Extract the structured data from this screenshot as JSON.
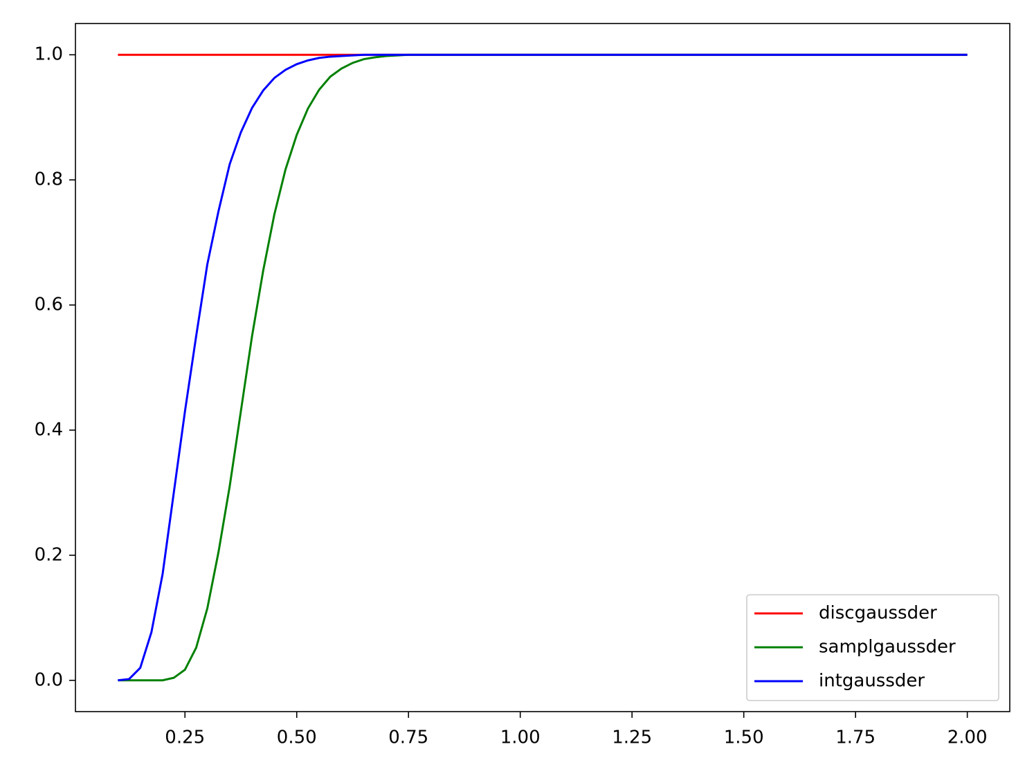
{
  "chart_data": {
    "type": "line",
    "x": [
      0.1,
      0.125,
      0.15,
      0.175,
      0.2,
      0.225,
      0.25,
      0.275,
      0.3,
      0.325,
      0.35,
      0.375,
      0.4,
      0.425,
      0.45,
      0.475,
      0.5,
      0.525,
      0.55,
      0.575,
      0.6,
      0.625,
      0.65,
      0.675,
      0.7,
      0.725,
      0.75,
      0.775,
      0.8,
      0.825,
      0.85,
      0.875,
      0.9,
      0.925,
      0.95,
      0.975,
      1.0,
      1.025,
      1.05,
      1.075,
      1.1,
      1.125,
      1.15,
      1.175,
      1.2,
      1.225,
      1.25,
      1.275,
      1.3,
      1.325,
      1.35,
      1.375,
      1.4,
      1.425,
      1.45,
      1.475,
      1.5,
      1.525,
      1.55,
      1.575,
      1.6,
      1.625,
      1.65,
      1.675,
      1.7,
      1.725,
      1.75,
      1.775,
      1.8,
      1.825,
      1.85,
      1.875,
      1.9,
      1.925,
      1.95,
      1.975,
      2.0
    ],
    "series": [
      {
        "name": "discgaussder",
        "color": "#ff0000",
        "values": [
          1,
          1,
          1,
          1,
          1,
          1,
          1,
          1,
          1,
          1,
          1,
          1,
          1,
          1,
          1,
          1,
          1,
          1,
          1,
          1,
          1,
          1,
          1,
          1,
          1,
          1,
          1,
          1,
          1,
          1,
          1,
          1,
          1,
          1,
          1,
          1,
          1,
          1,
          1,
          1,
          1,
          1,
          1,
          1,
          1,
          1,
          1,
          1,
          1,
          1,
          1,
          1,
          1,
          1,
          1,
          1,
          1,
          1,
          1,
          1,
          1,
          1,
          1,
          1,
          1,
          1,
          1,
          1,
          1,
          1,
          1,
          1,
          1,
          1,
          1,
          1,
          1
        ]
      },
      {
        "name": "samplgaussder",
        "color": "#008000",
        "values": [
          0,
          0,
          0,
          0,
          0,
          0.004,
          0.017,
          0.052,
          0.115,
          0.205,
          0.31,
          0.43,
          0.55,
          0.655,
          0.745,
          0.817,
          0.872,
          0.914,
          0.944,
          0.965,
          0.978,
          0.987,
          0.993,
          0.996,
          0.998,
          0.999,
          1,
          1,
          1,
          1,
          1,
          1,
          1,
          1,
          1,
          1,
          1,
          1,
          1,
          1,
          1,
          1,
          1,
          1,
          1,
          1,
          1,
          1,
          1,
          1,
          1,
          1,
          1,
          1,
          1,
          1,
          1,
          1,
          1,
          1,
          1,
          1,
          1,
          1,
          1,
          1,
          1,
          1,
          1,
          1,
          1,
          1,
          1,
          1,
          1,
          1,
          1
        ]
      },
      {
        "name": "intgaussder",
        "color": "#0000ff",
        "values": [
          0,
          0.002,
          0.02,
          0.077,
          0.17,
          0.3,
          0.43,
          0.55,
          0.665,
          0.75,
          0.825,
          0.876,
          0.915,
          0.943,
          0.963,
          0.976,
          0.985,
          0.991,
          0.995,
          0.997,
          0.998,
          0.999,
          1,
          1,
          1,
          1,
          1,
          1,
          1,
          1,
          1,
          1,
          1,
          1,
          1,
          1,
          1,
          1,
          1,
          1,
          1,
          1,
          1,
          1,
          1,
          1,
          1,
          1,
          1,
          1,
          1,
          1,
          1,
          1,
          1,
          1,
          1,
          1,
          1,
          1,
          1,
          1,
          1,
          1,
          1,
          1,
          1,
          1,
          1,
          1,
          1,
          1,
          1,
          1,
          1,
          1,
          1
        ]
      }
    ],
    "xlim": [
      0.005,
      2.095
    ],
    "ylim": [
      -0.05,
      1.05
    ],
    "xticks": [
      0.25,
      {
        "value": 0.5,
        "label": "0.50"
      },
      0.75,
      {
        "value": 1,
        "label": "1.00"
      },
      1.25,
      {
        "value": 1.5,
        "label": "1.50"
      },
      1.75,
      {
        "value": 2,
        "label": "2.00"
      }
    ],
    "yticks": [
      {
        "value": 0,
        "label": "0.0"
      },
      0.2,
      0.4,
      0.6,
      0.8,
      {
        "value": 1,
        "label": "1.0"
      }
    ],
    "legend": "lower right"
  }
}
